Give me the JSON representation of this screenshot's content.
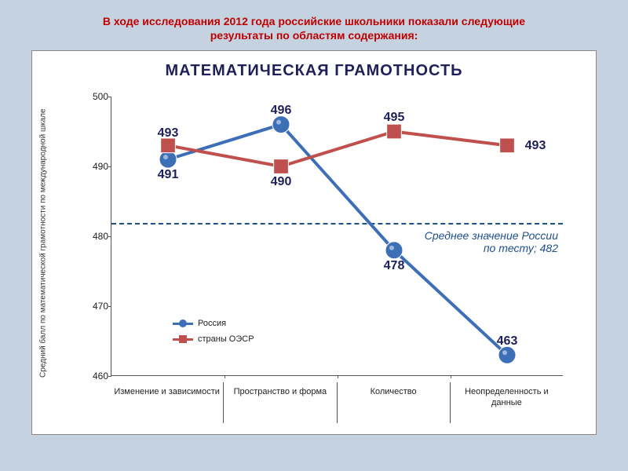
{
  "header": {
    "title": "В ходе исследования 2012 года российские школьники показали следующие результаты по областям содержания:"
  },
  "chart": {
    "type": "line",
    "title": "МАТЕМАТИЧЕСКАЯ ГРАМОТНОСТЬ",
    "y_axis_label": "Средний балл по математической грамотности по международной шкале",
    "background_color": "#ffffff",
    "page_background": "#c5d3e0",
    "ylim": [
      460,
      500
    ],
    "ytick_step": 10,
    "yticks": [
      460,
      470,
      480,
      490,
      500
    ],
    "categories": [
      "Изменение и зависимости",
      "Пространство и форма",
      "Количество",
      "Неопределенность и данные"
    ],
    "reference_line": {
      "value": 482,
      "label_line1": "Среднее значение России",
      "label_line2": "по тесту; 482",
      "color": "#1f4e8c"
    },
    "series": [
      {
        "name": "Россия",
        "values": [
          491,
          496,
          478,
          463
        ],
        "color": "#3c6fb6",
        "marker": "circle",
        "marker_size": 11,
        "line_width": 4
      },
      {
        "name": "страны ОЭСР",
        "values": [
          493,
          490,
          495,
          493
        ],
        "color": "#c0504d",
        "marker": "square",
        "marker_size": 11,
        "line_width": 4
      }
    ],
    "value_labels": [
      {
        "text": "493",
        "series": 1,
        "cat": 0,
        "dy": -16
      },
      {
        "text": "491",
        "series": 0,
        "cat": 0,
        "dy": 20
      },
      {
        "text": "496",
        "series": 0,
        "cat": 1,
        "dy": -18
      },
      {
        "text": "490",
        "series": 1,
        "cat": 1,
        "dy": 20
      },
      {
        "text": "495",
        "series": 1,
        "cat": 2,
        "dy": -18
      },
      {
        "text": "478",
        "series": 0,
        "cat": 2,
        "dy": 20
      },
      {
        "text": "493",
        "series": 1,
        "cat": 3,
        "dx": 36,
        "dy": 0
      },
      {
        "text": "463",
        "series": 0,
        "cat": 3,
        "dy": -18
      }
    ],
    "legend": {
      "items": [
        {
          "label": "Россия",
          "series_index": 0
        },
        {
          "label": "страны ОЭСР",
          "series_index": 1
        }
      ]
    }
  }
}
